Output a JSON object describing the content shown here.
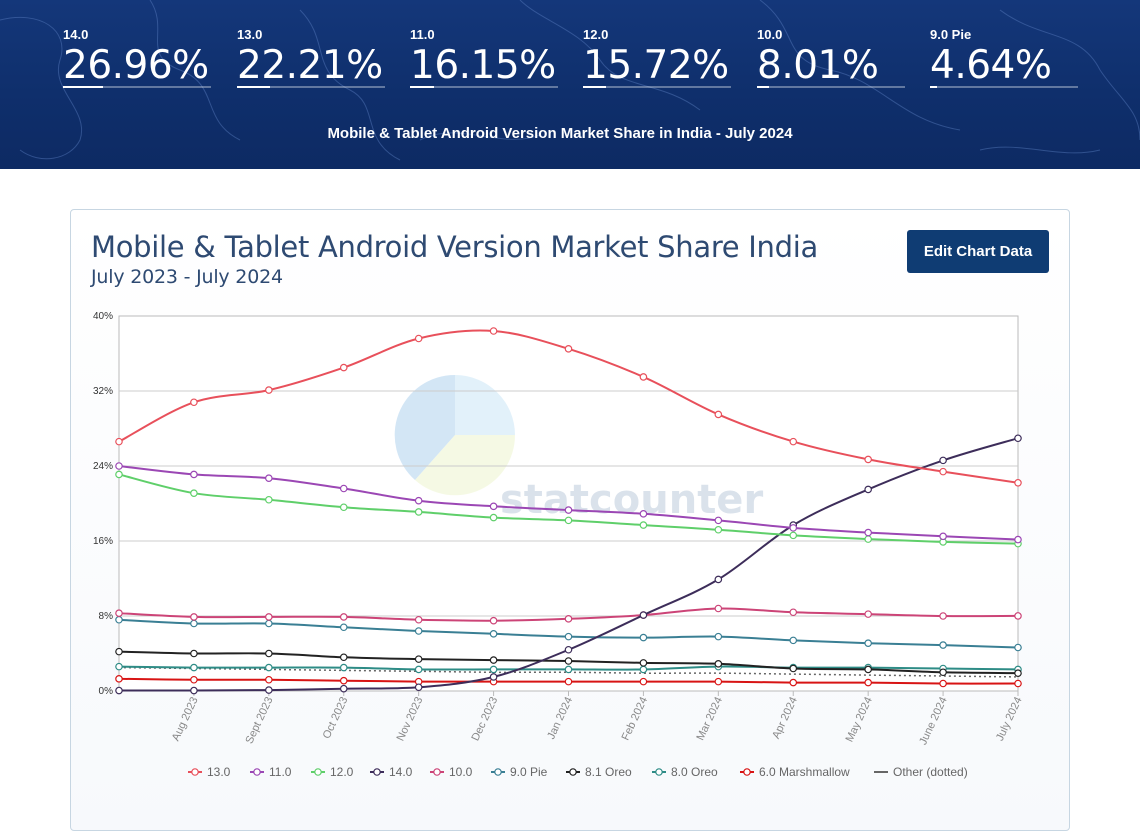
{
  "hero": {
    "stats": [
      {
        "label": "14.0",
        "value": "26.96%",
        "fill": 0.2696
      },
      {
        "label": "13.0",
        "value": "22.21%",
        "fill": 0.2221
      },
      {
        "label": "11.0",
        "value": "16.15%",
        "fill": 0.1615
      },
      {
        "label": "12.0",
        "value": "15.72%",
        "fill": 0.1572
      },
      {
        "label": "10.0",
        "value": "8.01%",
        "fill": 0.0801
      },
      {
        "label": "9.0 Pie",
        "value": "4.64%",
        "fill": 0.0464
      }
    ],
    "title": "Mobile & Tablet Android Version Market Share in India - July 2024"
  },
  "card": {
    "title": "Mobile & Tablet Android Version Market Share India",
    "subtitle": "July 2023 - July 2024",
    "edit_button": "Edit Chart Data",
    "watermark": "statcounter"
  },
  "chart_data": {
    "type": "line",
    "categories": [
      "",
      "Aug 2023",
      "Sept 2023",
      "Oct 2023",
      "Nov 2023",
      "Dec 2023",
      "Jan 2024",
      "Feb 2024",
      "Mar 2024",
      "Apr 2024",
      "May 2024",
      "June 2024",
      "July 2024"
    ],
    "ylim": [
      0,
      40
    ],
    "yticks": [
      0,
      8,
      16,
      24,
      32,
      40
    ],
    "ytick_labels": [
      "0%",
      "8%",
      "16%",
      "24%",
      "32%",
      "40%"
    ],
    "grid": true,
    "legend_position": "bottom",
    "series": [
      {
        "name": "13.0",
        "color": "#e8505b",
        "dotted": false,
        "markers": true,
        "values": [
          26.6,
          30.8,
          32.1,
          34.5,
          37.6,
          38.4,
          36.5,
          33.5,
          29.5,
          26.6,
          24.7,
          23.4,
          22.21
        ]
      },
      {
        "name": "11.0",
        "color": "#9b47b4",
        "dotted": false,
        "markers": true,
        "values": [
          24.0,
          23.1,
          22.7,
          21.6,
          20.3,
          19.7,
          19.3,
          18.9,
          18.2,
          17.4,
          16.9,
          16.5,
          16.15
        ]
      },
      {
        "name": "12.0",
        "color": "#5fcf6a",
        "dotted": false,
        "markers": true,
        "values": [
          23.1,
          21.1,
          20.4,
          19.6,
          19.1,
          18.5,
          18.2,
          17.7,
          17.2,
          16.6,
          16.2,
          15.9,
          15.72
        ]
      },
      {
        "name": "14.0",
        "color": "#3d2d5a",
        "dotted": false,
        "markers": true,
        "values": [
          0.05,
          0.05,
          0.1,
          0.25,
          0.4,
          1.5,
          4.4,
          8.1,
          11.9,
          17.7,
          21.5,
          24.6,
          26.96
        ]
      },
      {
        "name": "10.0",
        "color": "#cc4477",
        "dotted": false,
        "markers": true,
        "values": [
          8.3,
          7.9,
          7.9,
          7.9,
          7.6,
          7.5,
          7.7,
          8.1,
          8.8,
          8.4,
          8.2,
          8.0,
          8.01
        ]
      },
      {
        "name": "9.0 Pie",
        "color": "#3a7f94",
        "dotted": false,
        "markers": true,
        "values": [
          7.6,
          7.2,
          7.2,
          6.8,
          6.4,
          6.1,
          5.8,
          5.7,
          5.8,
          5.4,
          5.1,
          4.9,
          4.64
        ]
      },
      {
        "name": "8.1 Oreo",
        "color": "#222222",
        "dotted": false,
        "markers": true,
        "values": [
          4.2,
          4.0,
          4.0,
          3.6,
          3.4,
          3.3,
          3.2,
          3.0,
          2.9,
          2.4,
          2.3,
          2.0,
          1.9
        ]
      },
      {
        "name": "8.0 Oreo",
        "color": "#2e8c86",
        "dotted": false,
        "markers": true,
        "values": [
          2.6,
          2.5,
          2.5,
          2.5,
          2.3,
          2.3,
          2.3,
          2.3,
          2.6,
          2.5,
          2.5,
          2.4,
          2.3
        ]
      },
      {
        "name": "6.0 Marshmallow",
        "color": "#d81414",
        "dotted": false,
        "markers": true,
        "values": [
          1.3,
          1.2,
          1.2,
          1.1,
          1.0,
          1.0,
          1.0,
          1.0,
          1.0,
          0.9,
          0.9,
          0.8,
          0.8
        ]
      },
      {
        "name": "Other (dotted)",
        "color": "#666666",
        "dotted": true,
        "markers": false,
        "values": [
          2.5,
          2.4,
          2.3,
          2.2,
          2.1,
          2.0,
          2.0,
          1.9,
          1.9,
          1.8,
          1.7,
          1.6,
          1.5
        ]
      }
    ]
  }
}
